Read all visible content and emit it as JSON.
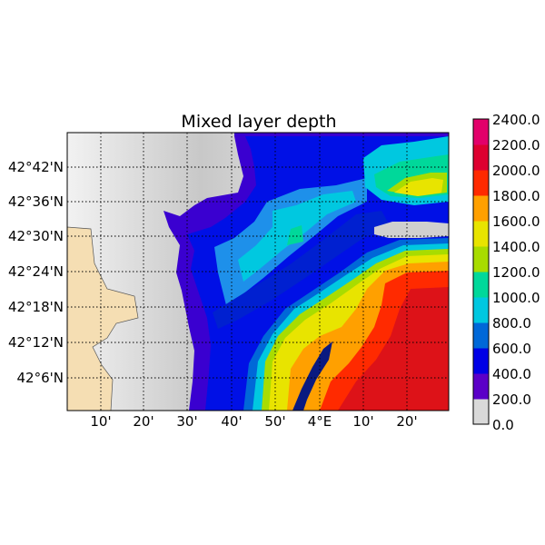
{
  "title": "Mixed layer depth",
  "map": {
    "lon_ticks": [
      "10'",
      "20'",
      "30'",
      "40'",
      "50'",
      "4°E",
      "10'",
      "20'"
    ],
    "lat_ticks": [
      "42°42'N",
      "42°36'N",
      "42°30'N",
      "42°24'N",
      "42°18'N",
      "42°12'N",
      "42°6'N"
    ],
    "gridlines": true
  },
  "colorbar": {
    "labels": [
      "2400.0",
      "2200.0",
      "2000.0",
      "1800.0",
      "1600.0",
      "1400.0",
      "1200.0",
      "1000.0",
      "800.0",
      "600.0",
      "400.0",
      "200.0",
      "0.0"
    ],
    "min": 0,
    "max": 2400,
    "colors": [
      "#d9d9d9",
      "#5b00c8",
      "#0000e6",
      "#0068d8",
      "#00c8e0",
      "#00d89a",
      "#a8dc00",
      "#e8e400",
      "#ffa000",
      "#ff2a00",
      "#dd0030",
      "#e2006a"
    ]
  },
  "colors": {
    "land": "#f5deb3",
    "shallow": "#d2d2d2",
    "deep_red": "#dd1218"
  }
}
